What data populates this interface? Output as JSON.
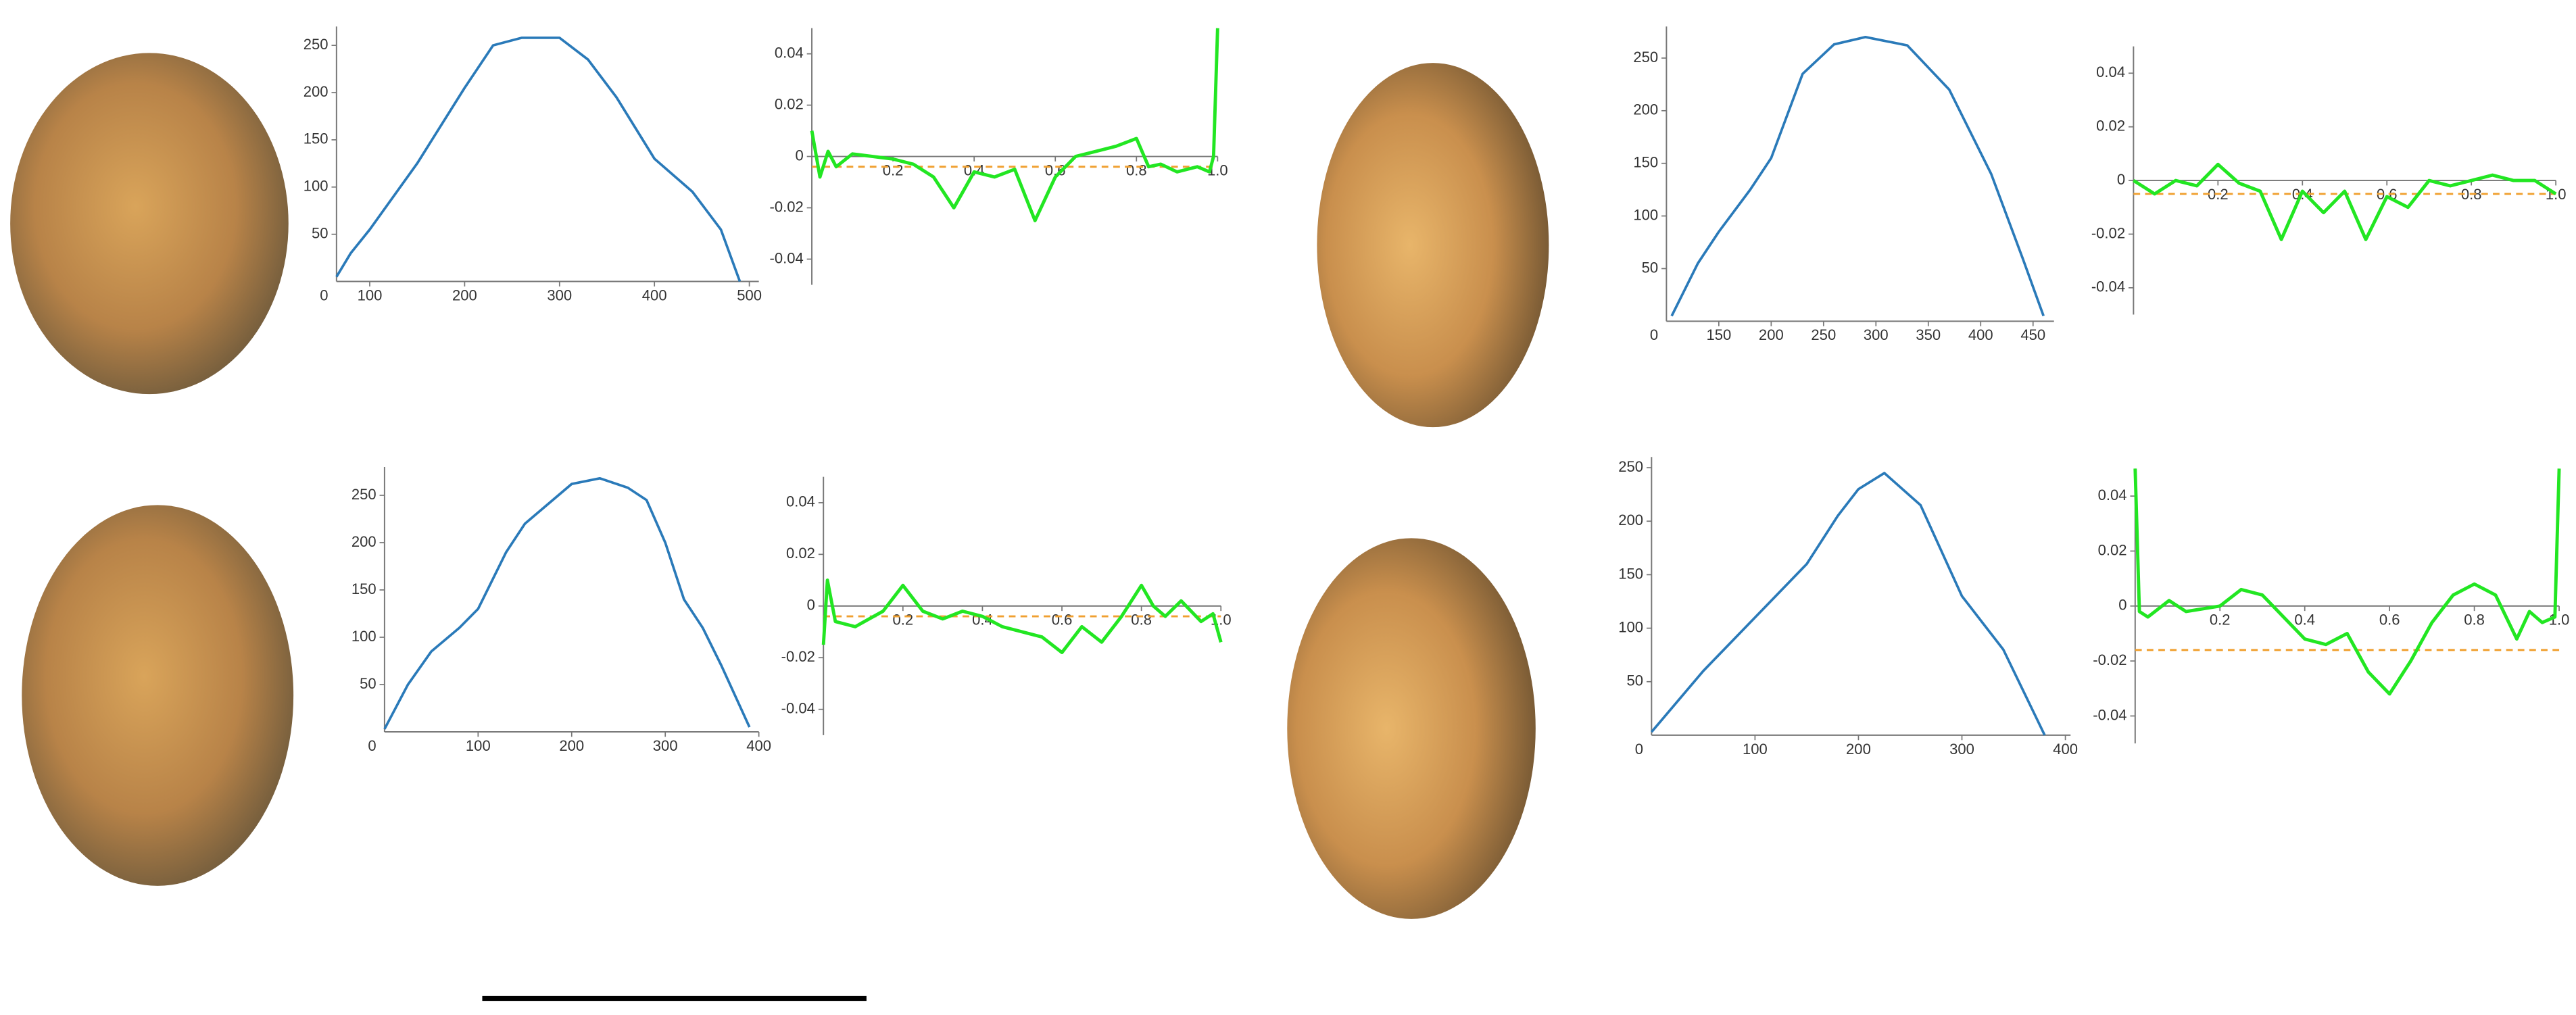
{
  "chart_data": [
    {
      "type": "line",
      "origin_label": "0",
      "color": "#2a7ab9",
      "x": [
        65,
        80,
        100,
        150,
        200,
        230,
        260,
        300,
        330,
        360,
        400,
        440,
        470,
        490
      ],
      "values": [
        5,
        30,
        55,
        125,
        205,
        250,
        258,
        258,
        235,
        195,
        130,
        95,
        55,
        0
      ],
      "xlim": [
        65,
        510
      ],
      "ylim": [
        0,
        270
      ],
      "xticks": [
        100,
        200,
        300,
        400,
        500
      ],
      "yticks": [
        50,
        100,
        150,
        200,
        250
      ]
    },
    {
      "type": "residual",
      "color": "#22e622",
      "reference_value": -0.004,
      "reference_color": "#f0a030",
      "x": [
        0,
        0.02,
        0.04,
        0.06,
        0.1,
        0.15,
        0.2,
        0.25,
        0.3,
        0.35,
        0.4,
        0.45,
        0.5,
        0.55,
        0.6,
        0.65,
        0.7,
        0.75,
        0.8,
        0.83,
        0.86,
        0.9,
        0.95,
        0.98,
        0.99,
        1
      ],
      "values": [
        0.01,
        -0.008,
        0.002,
        -0.004,
        0.001,
        0,
        -0.001,
        -0.003,
        -0.008,
        -0.02,
        -0.006,
        -0.008,
        -0.005,
        -0.025,
        -0.008,
        0,
        0.002,
        0.004,
        0.007,
        -0.004,
        -0.003,
        -0.006,
        -0.004,
        -0.006,
        0,
        0.05
      ],
      "xlim": [
        0,
        1
      ],
      "ylim": [
        -0.05,
        0.05
      ],
      "xticks": [
        0.2,
        0.4,
        0.6,
        0.8,
        {
          "value": 1,
          "label": "1.0"
        }
      ],
      "yticks": [
        0.04,
        0.02,
        0,
        -0.02,
        -0.04
      ]
    },
    {
      "type": "line",
      "origin_label": "0",
      "color": "#2a7ab9",
      "x": [
        0,
        25,
        50,
        80,
        100,
        130,
        150,
        200,
        230,
        260,
        280,
        300,
        320,
        340,
        360,
        390
      ],
      "values": [
        3,
        50,
        85,
        110,
        130,
        190,
        220,
        262,
        268,
        258,
        245,
        200,
        140,
        110,
        70,
        5
      ],
      "xlim": [
        0,
        400
      ],
      "ylim": [
        0,
        280
      ],
      "xticks": [
        100,
        200,
        300,
        400
      ],
      "yticks": [
        50,
        100,
        150,
        200,
        250
      ]
    },
    {
      "type": "residual",
      "color": "#22e622",
      "reference_value": -0.004,
      "reference_color": "#f0a030",
      "x": [
        0,
        0.01,
        0.03,
        0.08,
        0.15,
        0.2,
        0.25,
        0.3,
        0.35,
        0.4,
        0.45,
        0.5,
        0.55,
        0.6,
        0.65,
        0.7,
        0.75,
        0.8,
        0.83,
        0.86,
        0.9,
        0.95,
        0.98,
        1
      ],
      "values": [
        -0.015,
        0.01,
        -0.006,
        -0.008,
        -0.002,
        0.008,
        -0.002,
        -0.005,
        -0.002,
        -0.004,
        -0.008,
        -0.01,
        -0.012,
        -0.018,
        -0.008,
        -0.014,
        -0.004,
        0.008,
        0,
        -0.004,
        0.002,
        -0.006,
        -0.003,
        -0.014
      ],
      "xlim": [
        0,
        1
      ],
      "ylim": [
        -0.05,
        0.05
      ],
      "xticks": [
        0.2,
        0.4,
        0.6,
        0.8,
        {
          "value": 1,
          "label": "1.0"
        }
      ],
      "yticks": [
        0.04,
        0.02,
        0,
        -0.02,
        -0.04
      ]
    },
    {
      "type": "line",
      "origin_label": "0",
      "color": "#2a7ab9",
      "x": [
        105,
        130,
        150,
        180,
        200,
        230,
        260,
        290,
        330,
        370,
        410,
        440,
        460
      ],
      "values": [
        5,
        55,
        85,
        125,
        155,
        235,
        263,
        270,
        262,
        220,
        140,
        60,
        5
      ],
      "xlim": [
        100,
        470
      ],
      "ylim": [
        0,
        280
      ],
      "xticks": [
        150,
        200,
        250,
        300,
        350,
        400,
        450
      ],
      "yticks": [
        50,
        100,
        150,
        200,
        250
      ]
    },
    {
      "type": "residual",
      "color": "#22e622",
      "reference_value": -0.005,
      "reference_color": "#f0a030",
      "x": [
        0,
        0.05,
        0.1,
        0.15,
        0.2,
        0.25,
        0.3,
        0.35,
        0.4,
        0.45,
        0.5,
        0.55,
        0.6,
        0.65,
        0.7,
        0.75,
        0.8,
        0.85,
        0.9,
        0.95,
        1
      ],
      "values": [
        0,
        -0.005,
        0,
        -0.002,
        0.006,
        -0.001,
        -0.004,
        -0.022,
        -0.004,
        -0.012,
        -0.004,
        -0.022,
        -0.006,
        -0.01,
        0,
        -0.002,
        0,
        0.002,
        0,
        0,
        -0.005
      ],
      "xlim": [
        0,
        1
      ],
      "ylim": [
        -0.05,
        0.05
      ],
      "xticks": [
        0.2,
        0.4,
        0.6,
        0.8,
        {
          "value": 1,
          "label": "1.0"
        }
      ],
      "yticks": [
        0.04,
        0.02,
        0,
        -0.02,
        -0.04
      ]
    },
    {
      "type": "line",
      "origin_label": "0",
      "color": "#2a7ab9",
      "x": [
        0,
        50,
        100,
        150,
        180,
        200,
        225,
        260,
        300,
        340,
        370,
        380
      ],
      "values": [
        3,
        60,
        110,
        160,
        205,
        230,
        245,
        215,
        130,
        80,
        20,
        0
      ],
      "xlim": [
        0,
        405
      ],
      "ylim": [
        0,
        260
      ],
      "xticks": [
        100,
        200,
        300,
        400
      ],
      "yticks": [
        50,
        100,
        150,
        200,
        250
      ]
    },
    {
      "type": "residual",
      "color": "#22e622",
      "reference_value": -0.016,
      "reference_color": "#f0a030",
      "x": [
        0,
        0.01,
        0.03,
        0.08,
        0.12,
        0.2,
        0.25,
        0.3,
        0.35,
        0.4,
        0.45,
        0.5,
        0.55,
        0.6,
        0.65,
        0.7,
        0.75,
        0.8,
        0.85,
        0.9,
        0.93,
        0.96,
        0.99,
        1
      ],
      "values": [
        0.05,
        -0.002,
        -0.004,
        0.002,
        -0.002,
        0,
        0.006,
        0.004,
        -0.004,
        -0.012,
        -0.014,
        -0.01,
        -0.024,
        -0.032,
        -0.02,
        -0.006,
        0.004,
        0.008,
        0.004,
        -0.012,
        -0.002,
        -0.006,
        -0.004,
        0.05
      ],
      "xlim": [
        0,
        1
      ],
      "ylim": [
        -0.05,
        0.05
      ],
      "xticks": [
        0.2,
        0.4,
        0.6,
        0.8,
        {
          "value": 1,
          "label": "1.0"
        }
      ],
      "yticks": [
        0.04,
        0.02,
        0,
        -0.02,
        -0.04
      ]
    }
  ]
}
